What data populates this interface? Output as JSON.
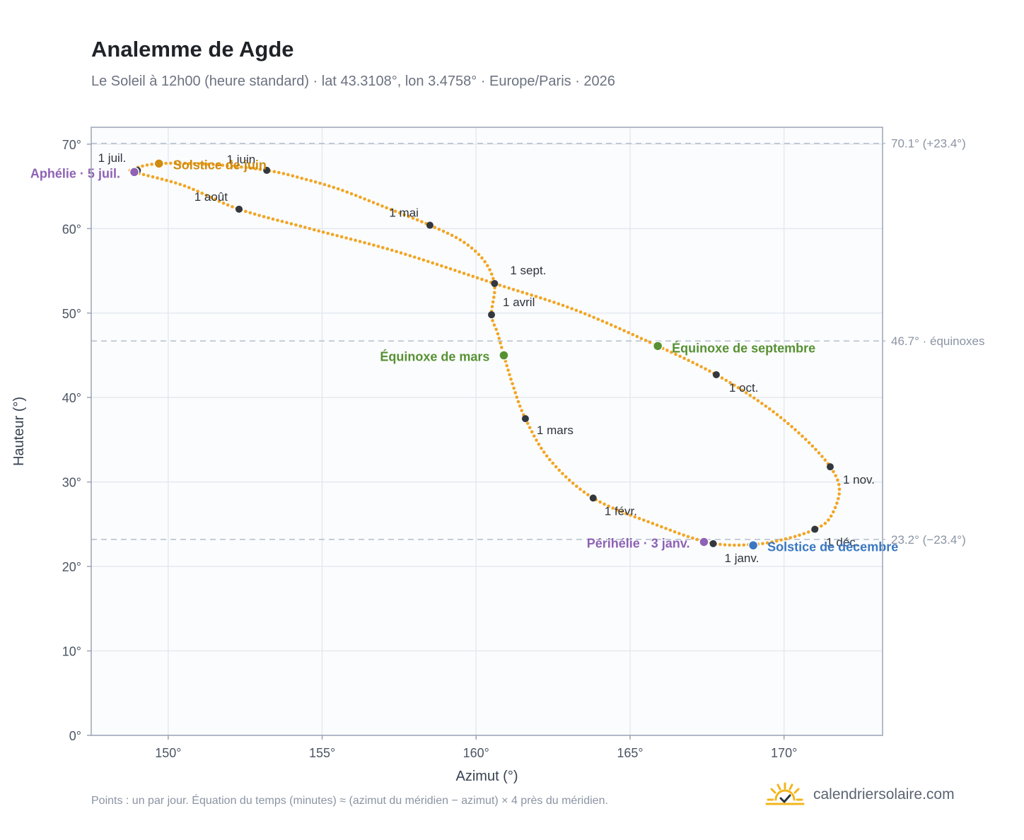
{
  "header": {
    "title": "Analemme de Agde",
    "subtitle": "Le Soleil à 12h00 (heure standard) · lat 43.3108°, lon 3.4758° · Europe/Paris · 2026"
  },
  "footer": {
    "note": "Points : un par jour. Équation du temps (minutes) ≈ (azimut du méridien − azimut) × 4 près du méridien.",
    "brand": "calendriersolaire.com",
    "brand_icon": "sun-check-icon"
  },
  "colors": {
    "curve": "#f2a523",
    "marker": "#33383f",
    "solstice_june": "#d08c10",
    "solstice_december": "#3a78c2",
    "equinox": "#579133",
    "apsis": "#8e62b4",
    "grid": "#e5e9ef",
    "plot_bg": "#fbfcfe",
    "frame": "#9aa5b4",
    "ref_line": "#b3bfcc"
  },
  "chart_data": {
    "type": "scatter",
    "xlabel": "Azimut (°)",
    "ylabel": "Hauteur (°)",
    "xlim": [
      147.5,
      173.2
    ],
    "ylim": [
      0,
      72
    ],
    "x_ticks": [
      150,
      155,
      160,
      165,
      170
    ],
    "x_tick_labels": [
      "150°",
      "155°",
      "160°",
      "165°",
      "170°"
    ],
    "y_ticks": [
      0,
      10,
      20,
      30,
      40,
      50,
      60,
      70
    ],
    "y_tick_labels": [
      "0°",
      "10°",
      "20°",
      "30°",
      "40°",
      "50°",
      "60°",
      "70°"
    ],
    "grid": true,
    "series_path_azimuth_altitude": [
      [
        169.0,
        22.6
      ],
      [
        167.6,
        22.8
      ],
      [
        165.8,
        25.0
      ],
      [
        163.8,
        28.1
      ],
      [
        162.4,
        32.6
      ],
      [
        161.6,
        37.5
      ],
      [
        161.2,
        41.4
      ],
      [
        160.9,
        45.0
      ],
      [
        160.7,
        47.6
      ],
      [
        160.5,
        49.8
      ],
      [
        160.6,
        53.2
      ],
      [
        160.3,
        56.0
      ],
      [
        159.6,
        58.4
      ],
      [
        158.5,
        60.4
      ],
      [
        157.0,
        62.6
      ],
      [
        155.6,
        64.6
      ],
      [
        154.4,
        65.9
      ],
      [
        153.2,
        66.9
      ],
      [
        151.4,
        67.6
      ],
      [
        149.7,
        67.7
      ],
      [
        148.9,
        67.1
      ],
      [
        148.9,
        66.7
      ],
      [
        150.5,
        65.1
      ],
      [
        152.3,
        62.3
      ],
      [
        154.6,
        60.0
      ],
      [
        157.4,
        57.3
      ],
      [
        160.6,
        53.5
      ],
      [
        163.2,
        50.4
      ],
      [
        165.9,
        46.1
      ],
      [
        167.8,
        42.7
      ],
      [
        169.4,
        39.0
      ],
      [
        170.6,
        35.4
      ],
      [
        171.5,
        31.8
      ],
      [
        171.8,
        29.0
      ],
      [
        171.5,
        25.8
      ],
      [
        171.0,
        24.4
      ],
      [
        170.1,
        23.3
      ],
      [
        169.0,
        22.6
      ]
    ],
    "month_markers": [
      {
        "label": "1 janv.",
        "azimuth": 167.7,
        "altitude": 22.7
      },
      {
        "label": "1 févr.",
        "azimuth": 163.8,
        "altitude": 28.1
      },
      {
        "label": "1 mars",
        "azimuth": 161.6,
        "altitude": 37.5
      },
      {
        "label": "1 avril",
        "azimuth": 160.5,
        "altitude": 49.8
      },
      {
        "label": "1 mai",
        "azimuth": 158.5,
        "altitude": 60.4
      },
      {
        "label": "1 juin",
        "azimuth": 153.2,
        "altitude": 66.9
      },
      {
        "label": "1 juil.",
        "azimuth": 149.0,
        "altitude": 66.9
      },
      {
        "label": "1 août",
        "azimuth": 152.3,
        "altitude": 62.3
      },
      {
        "label": "1 sept.",
        "azimuth": 160.6,
        "altitude": 53.5
      },
      {
        "label": "1 oct.",
        "azimuth": 167.8,
        "altitude": 42.7
      },
      {
        "label": "1 nov.",
        "azimuth": 171.5,
        "altitude": 31.8
      },
      {
        "label": "1 déc.",
        "azimuth": 171.0,
        "altitude": 24.4
      }
    ],
    "events": [
      {
        "label": "Solstice de juin",
        "azimuth": 149.7,
        "altitude": 67.7,
        "color_key": "solstice_june"
      },
      {
        "label": "Aphélie · 5 juil.",
        "azimuth": 148.9,
        "altitude": 66.7,
        "color_key": "apsis"
      },
      {
        "label": "Équinoxe de mars",
        "azimuth": 160.9,
        "altitude": 45.0,
        "color_key": "equinox"
      },
      {
        "label": "Équinoxe de septembre",
        "azimuth": 165.9,
        "altitude": 46.1,
        "color_key": "equinox"
      },
      {
        "label": "Périhélie · 3 janv.",
        "azimuth": 167.4,
        "altitude": 22.9,
        "color_key": "apsis"
      },
      {
        "label": "Solstice de décembre",
        "azimuth": 169.0,
        "altitude": 22.5,
        "color_key": "solstice_december"
      }
    ],
    "reference_lines": [
      {
        "altitude": 70.1,
        "label": "70.1° (+23.4°)"
      },
      {
        "altitude": 46.7,
        "label": "46.7° · équinoxes"
      },
      {
        "altitude": 23.2,
        "label": "23.2° (−23.4°)"
      }
    ]
  }
}
